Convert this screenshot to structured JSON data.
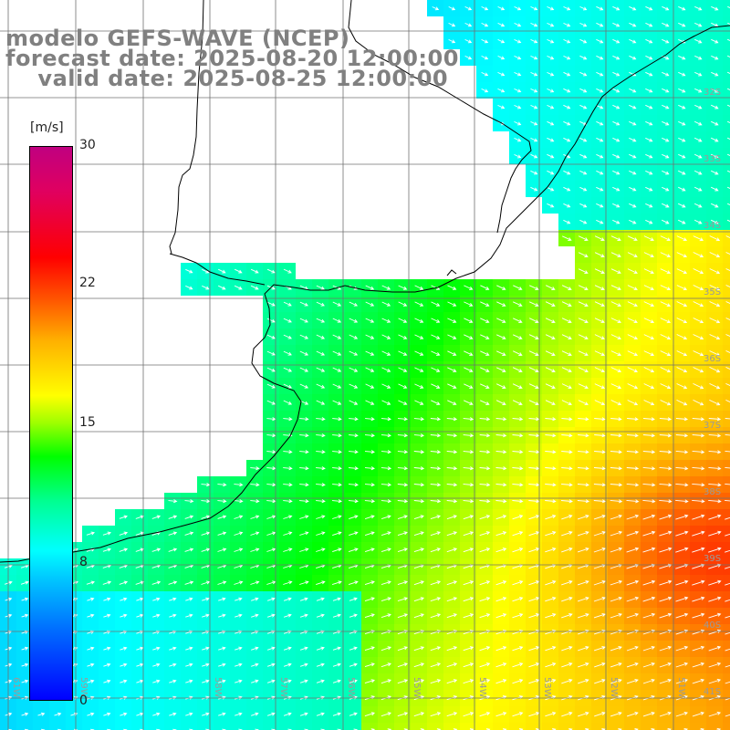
{
  "title": {
    "line1": "modelo GEFS-WAVE (NCEP)",
    "line2": "forecast date: 2025-08-20 12:00:00",
    "line3": "    valid date: 2025-08-25 12:00:00"
  },
  "colorbar": {
    "units": "[m/s]",
    "ticks": [
      "30",
      "22",
      "15",
      "8",
      "0"
    ],
    "tick_values": [
      30,
      22,
      15,
      8,
      0
    ]
  },
  "grid": {
    "lat_labels": [
      "32S",
      "33S",
      "34S",
      "35S",
      "36S",
      "37S",
      "38S",
      "39S",
      "40S",
      "41S"
    ],
    "lon_labels": [
      "61W",
      "59W",
      "58W",
      "57W",
      "56W",
      "55W",
      "54W",
      "53W",
      "52W",
      "51W"
    ]
  },
  "colors": {
    "land": "#ffffff",
    "gridline": "#707070",
    "coast": "#000000",
    "arrow": "#ffffff"
  }
}
